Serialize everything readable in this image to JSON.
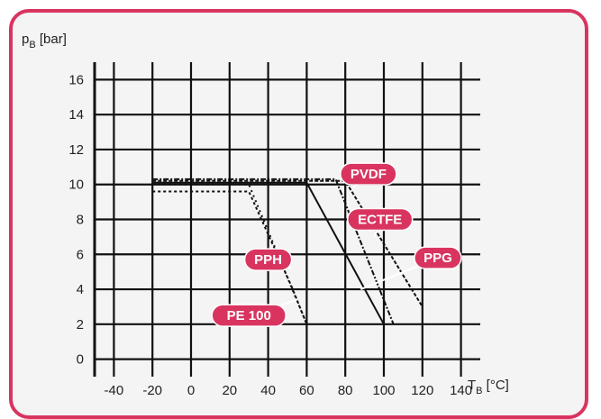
{
  "colors": {
    "accent": "#d9345f",
    "background": "#f4f4f4",
    "grid": "#111111",
    "line": "#111111"
  },
  "chart_data": {
    "type": "line",
    "ylabel": {
      "main": "p",
      "sub": "B",
      "unit": " [bar]"
    },
    "xlabel": {
      "main": "T",
      "sub": "B",
      "unit": " [°C]"
    },
    "xlim": [
      -50,
      150
    ],
    "ylim": [
      -1,
      17
    ],
    "xticks": [
      -40,
      -20,
      0,
      20,
      40,
      60,
      80,
      100,
      120,
      140
    ],
    "yticks": [
      0,
      2,
      4,
      6,
      8,
      10,
      12,
      14,
      16
    ],
    "grid": true,
    "series": [
      {
        "name": "PE 100",
        "dash": "3,3",
        "points": [
          [
            -20,
            9.6
          ],
          [
            30,
            9.6
          ],
          [
            52,
            4.2
          ],
          [
            60,
            2
          ]
        ]
      },
      {
        "name": "PPH",
        "dash": "2,4",
        "points": [
          [
            -20,
            10
          ],
          [
            30,
            10
          ],
          [
            60,
            2
          ]
        ]
      },
      {
        "name": "PPG",
        "dash": "6,2,2,2",
        "points": [
          [
            -20,
            10.3
          ],
          [
            75,
            10.3
          ],
          [
            105,
            2
          ]
        ]
      },
      {
        "name": "PVDF",
        "dash": "",
        "points": [
          [
            -20,
            10.1
          ],
          [
            60,
            10.1
          ],
          [
            100,
            2
          ]
        ]
      },
      {
        "name": "ECTFE",
        "dash": "4,2",
        "points": [
          [
            -20,
            10.2
          ],
          [
            80,
            10.2
          ],
          [
            120,
            3
          ]
        ]
      }
    ],
    "labels": [
      {
        "text": "PVDF",
        "x": 92,
        "y": 10.6
      },
      {
        "text": "ECTFE",
        "x": 98,
        "y": 8
      },
      {
        "text": "PPG",
        "x": 128,
        "y": 5.8
      },
      {
        "text": "PPH",
        "x": 40,
        "y": 5.7
      },
      {
        "text": "PE 100",
        "x": 30,
        "y": 2.5
      }
    ]
  }
}
